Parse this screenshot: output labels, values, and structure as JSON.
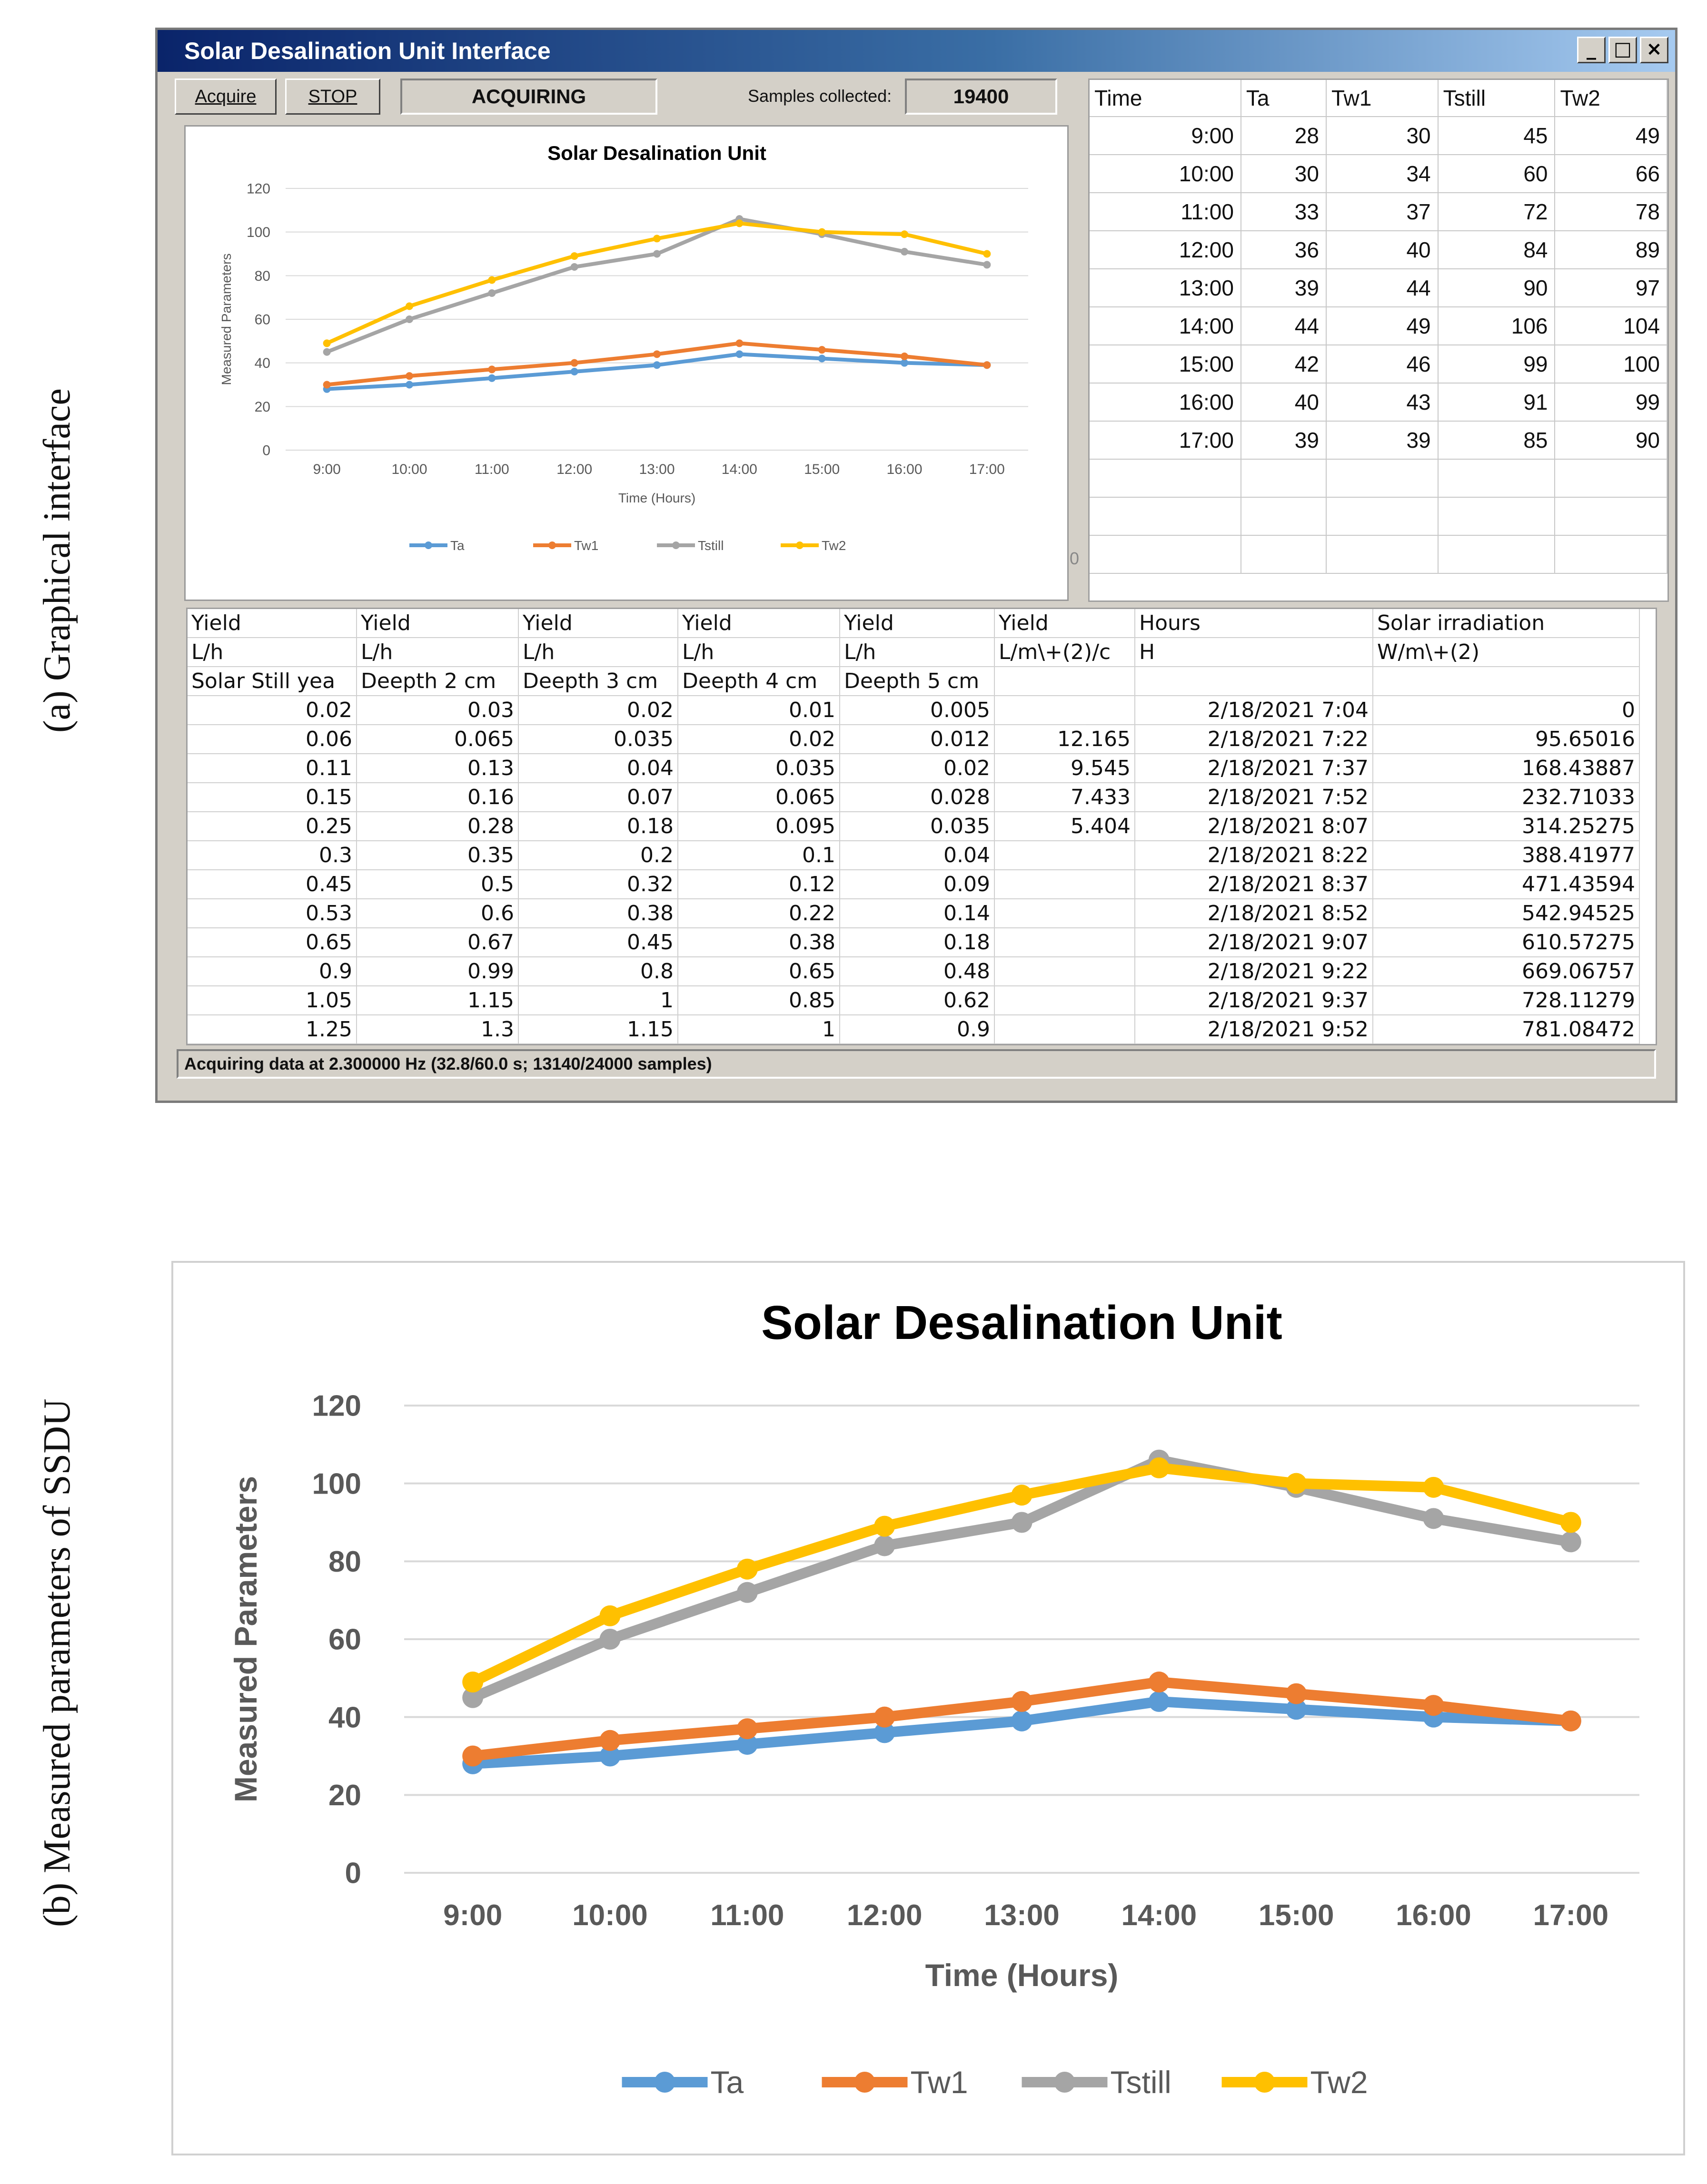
{
  "side_labels": {
    "a": "(a)  Graphical interface",
    "b": "(b)  Measured parameters of    SSDU"
  },
  "window": {
    "title": "Solar Desalination Unit Interface",
    "acquire_label": "Acquire",
    "stop_label": "STOP",
    "status": "ACQUIRING",
    "samples_label": "Samples collected:",
    "samples_value": "19400",
    "statusbar": "Acquiring data at 2.300000 Hz (32.8/60.0 s; 13140/24000 samples)",
    "tiny_zero": "0",
    "controls": {
      "minimize": "_",
      "maximize": "□",
      "close": "×"
    }
  },
  "readings_table": {
    "headers": [
      "Time",
      "Ta",
      "Tw1",
      "Tstill",
      "Tw2"
    ],
    "rows": [
      [
        "9:00",
        "28",
        "30",
        "45",
        "49"
      ],
      [
        "10:00",
        "30",
        "34",
        "60",
        "66"
      ],
      [
        "11:00",
        "33",
        "37",
        "72",
        "78"
      ],
      [
        "12:00",
        "36",
        "40",
        "84",
        "89"
      ],
      [
        "13:00",
        "39",
        "44",
        "90",
        "97"
      ],
      [
        "14:00",
        "44",
        "49",
        "106",
        "104"
      ],
      [
        "15:00",
        "42",
        "46",
        "99",
        "100"
      ],
      [
        "16:00",
        "40",
        "43",
        "91",
        "99"
      ],
      [
        "17:00",
        "39",
        "39",
        "85",
        "90"
      ]
    ]
  },
  "yield_table": {
    "header1": [
      "Yield",
      "Yield",
      "Yield",
      "Yield",
      "Yield",
      "Yield",
      "Hours",
      "Solar irradiation"
    ],
    "header2": [
      "L/h",
      "L/h",
      "L/h",
      "L/h",
      "L/h",
      "L/m\\+(2)/c",
      "H",
      "W/m\\+(2)"
    ],
    "header3": [
      "Solar Still yea",
      "Deepth 2 cm",
      "Deepth 3 cm",
      "Deepth 4 cm",
      "Deepth 5 cm",
      "",
      "",
      ""
    ],
    "rows": [
      [
        "0.02",
        "0.03",
        "0.02",
        "0.01",
        "0.005",
        "",
        "2/18/2021 7:04",
        "0"
      ],
      [
        "0.06",
        "0.065",
        "0.035",
        "0.02",
        "0.012",
        "12.165",
        "2/18/2021 7:22",
        "95.65016"
      ],
      [
        "0.11",
        "0.13",
        "0.04",
        "0.035",
        "0.02",
        "9.545",
        "2/18/2021 7:37",
        "168.43887"
      ],
      [
        "0.15",
        "0.16",
        "0.07",
        "0.065",
        "0.028",
        "7.433",
        "2/18/2021 7:52",
        "232.71033"
      ],
      [
        "0.25",
        "0.28",
        "0.18",
        "0.095",
        "0.035",
        "5.404",
        "2/18/2021 8:07",
        "314.25275"
      ],
      [
        "0.3",
        "0.35",
        "0.2",
        "0.1",
        "0.04",
        "",
        "2/18/2021 8:22",
        "388.41977"
      ],
      [
        "0.45",
        "0.5",
        "0.32",
        "0.12",
        "0.09",
        "",
        "2/18/2021 8:37",
        "471.43594"
      ],
      [
        "0.53",
        "0.6",
        "0.38",
        "0.22",
        "0.14",
        "",
        "2/18/2021 8:52",
        "542.94525"
      ],
      [
        "0.65",
        "0.67",
        "0.45",
        "0.38",
        "0.18",
        "",
        "2/18/2021 9:07",
        "610.57275"
      ],
      [
        "0.9",
        "0.99",
        "0.8",
        "0.65",
        "0.48",
        "",
        "2/18/2021 9:22",
        "669.06757"
      ],
      [
        "1.05",
        "1.15",
        "1",
        "0.85",
        "0.62",
        "",
        "2/18/2021 9:37",
        "728.11279"
      ],
      [
        "1.25",
        "1.3",
        "1.15",
        "1",
        "0.9",
        "",
        "2/18/2021 9:52",
        "781.08472"
      ]
    ]
  },
  "chart_data": {
    "type": "line",
    "title": "Solar Desalination Unit",
    "xlabel": "Time (Hours)",
    "ylabel": "Measured Parameters",
    "categories": [
      "9:00",
      "10:00",
      "11:00",
      "12:00",
      "13:00",
      "14:00",
      "15:00",
      "16:00",
      "17:00"
    ],
    "ylim": [
      0,
      120
    ],
    "yticks": [
      0,
      20,
      40,
      60,
      80,
      100,
      120
    ],
    "grid": true,
    "legend_position": "bottom",
    "series": [
      {
        "name": "Ta",
        "color": "#5b9bd5",
        "values": [
          28,
          30,
          33,
          36,
          39,
          44,
          42,
          40,
          39
        ]
      },
      {
        "name": "Tw1",
        "color": "#ed7d31",
        "values": [
          30,
          34,
          37,
          40,
          44,
          49,
          46,
          43,
          39
        ]
      },
      {
        "name": "Tstill",
        "color": "#a5a5a5",
        "values": [
          45,
          60,
          72,
          84,
          90,
          106,
          99,
          91,
          85
        ]
      },
      {
        "name": "Tw2",
        "color": "#ffc000",
        "values": [
          49,
          66,
          78,
          89,
          97,
          104,
          100,
          99,
          90
        ]
      }
    ]
  }
}
